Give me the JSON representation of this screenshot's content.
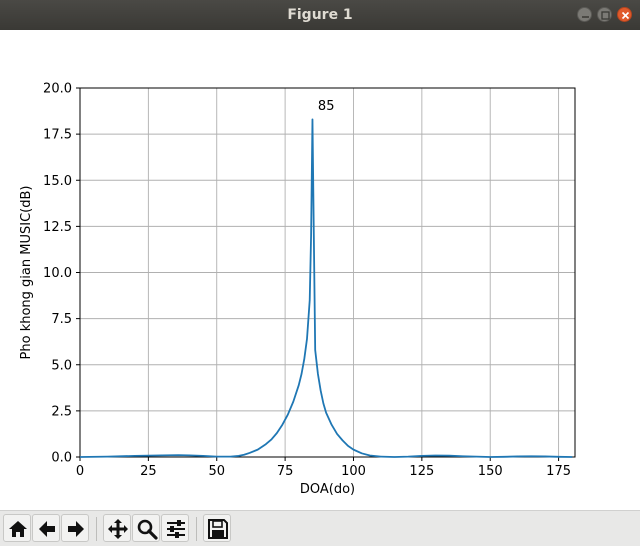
{
  "window": {
    "title": "Figure 1"
  },
  "toolbar": {
    "buttons": [
      {
        "name": "home-button",
        "icon": "home-icon"
      },
      {
        "name": "back-button",
        "icon": "arrow-left-icon"
      },
      {
        "name": "forward-button",
        "icon": "arrow-right-icon"
      },
      {
        "name": "pan-button",
        "icon": "move-icon"
      },
      {
        "name": "zoom-button",
        "icon": "magnifier-icon"
      },
      {
        "name": "configure-subplots-button",
        "icon": "sliders-icon"
      },
      {
        "name": "save-button",
        "icon": "floppy-icon"
      }
    ]
  },
  "chart_data": {
    "type": "line",
    "xlabel": "DOA(do)",
    "ylabel": "Pho khong gian MUSIC(dB)",
    "xlim": [
      0,
      181
    ],
    "ylim": [
      0,
      20
    ],
    "xticks": [
      0,
      25,
      50,
      75,
      100,
      125,
      150,
      175
    ],
    "yticks": [
      "0.0",
      "2.5",
      "5.0",
      "7.5",
      "10.0",
      "12.5",
      "15.0",
      "17.5",
      "20.0"
    ],
    "grid": true,
    "color": "#1f77b4",
    "annotations": [
      {
        "text": "85",
        "x": 87,
        "y": 18.8
      }
    ],
    "series": [
      {
        "x": [
          0,
          10,
          20,
          30,
          36,
          40,
          45,
          50,
          55,
          58,
          60,
          62,
          65,
          68,
          70,
          72,
          74,
          76,
          78,
          80,
          81,
          82,
          83,
          84,
          84.5,
          85,
          85.5,
          86,
          87,
          88,
          89,
          90,
          92,
          94,
          96,
          98,
          100,
          103,
          106,
          110,
          115,
          120,
          125,
          130,
          135,
          140,
          145,
          150,
          155,
          160,
          165,
          170,
          175,
          180
        ],
        "y": [
          0.0,
          0.02,
          0.06,
          0.09,
          0.1,
          0.09,
          0.06,
          0.02,
          0.02,
          0.06,
          0.12,
          0.22,
          0.4,
          0.7,
          0.95,
          1.3,
          1.75,
          2.3,
          3.0,
          3.9,
          4.5,
          5.3,
          6.4,
          8.5,
          12.0,
          18.3,
          12.0,
          5.8,
          4.5,
          3.6,
          2.9,
          2.4,
          1.75,
          1.25,
          0.9,
          0.6,
          0.4,
          0.2,
          0.08,
          0.02,
          0.0,
          0.02,
          0.06,
          0.08,
          0.07,
          0.04,
          0.02,
          0.0,
          0.01,
          0.03,
          0.04,
          0.03,
          0.01,
          0.0
        ]
      }
    ]
  }
}
